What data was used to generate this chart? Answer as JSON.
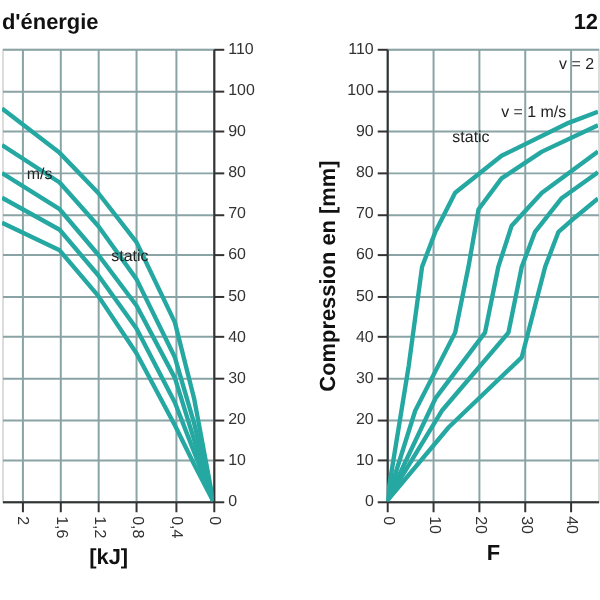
{
  "chart_data": [
    {
      "type": "line",
      "title": "d'énergie",
      "xlabel": "[kJ]",
      "xlim": [
        2.2,
        0
      ],
      "xticks": [
        2,
        {
          "value": 1.6,
          "label": "1,6"
        },
        {
          "value": 1.2,
          "label": "1,2"
        },
        {
          "value": 0.8,
          "label": "0,8"
        },
        {
          "value": 0.4,
          "label": "0,4"
        },
        0
      ],
      "ylim": [
        0,
        110
      ],
      "yticks": [
        0,
        10,
        20,
        30,
        40,
        50,
        60,
        70,
        80,
        90,
        100,
        110
      ],
      "grid": true,
      "legend": false,
      "series": [
        {
          "color": "#25a8a2",
          "x": [
            2.2,
            1.6,
            1.2,
            0.8,
            0.4,
            0.2,
            0
          ],
          "values": [
            95.5,
            84.7,
            75,
            63,
            43.5,
            25,
            0
          ]
        },
        {
          "color": "#25a8a2",
          "x": [
            2.2,
            1.6,
            1.2,
            0.8,
            0.4,
            0.2,
            0
          ],
          "values": [
            86.6,
            77.5,
            67,
            54,
            35,
            19,
            0
          ]
        },
        {
          "color": "#25a8a2",
          "x": [
            2.2,
            1.6,
            1.2,
            0.8,
            0.4,
            0.2,
            0
          ],
          "values": [
            79.8,
            71,
            60,
            47.6,
            30,
            15,
            0
          ]
        },
        {
          "color": "#25a8a2",
          "x": [
            2.2,
            1.6,
            1.2,
            0.8,
            0.4,
            0.2,
            0
          ],
          "values": [
            73.8,
            66,
            55,
            42,
            24,
            12,
            0
          ]
        },
        {
          "color": "#25a8a2",
          "x": [
            2.2,
            1.6,
            1.2,
            0.8,
            0.4,
            0.2,
            0
          ],
          "values": [
            67.7,
            61,
            50,
            36,
            18.5,
            9,
            0
          ]
        }
      ],
      "annotations": [
        {
          "text": "m/s",
          "x": 1.55,
          "y": 75
        },
        {
          "text": "static",
          "x": 0.55,
          "y": 55
        }
      ]
    },
    {
      "type": "line",
      "title": "12",
      "xlabel": "F",
      "ylabel": "Compression en [mm]",
      "xlim": [
        0,
        46
      ],
      "xticks": [
        0,
        10,
        20,
        30,
        40
      ],
      "ylim": [
        0,
        110
      ],
      "yticks": [
        0,
        10,
        20,
        30,
        40,
        50,
        60,
        70,
        80,
        90,
        100,
        110
      ],
      "grid": true,
      "legend": false,
      "series": [
        {
          "color": "#25a8a2",
          "x": [
            0,
            4.8,
            7.7,
            10.6,
            14.9,
            25,
            39.6,
            46
          ],
          "values": [
            0,
            33,
            57,
            65.5,
            75,
            84,
            92,
            94.7
          ]
        },
        {
          "color": "#25a8a2",
          "x": [
            0,
            6.2,
            14.9,
            17.8,
            20,
            25,
            33.8,
            46
          ],
          "values": [
            0,
            22,
            41,
            57,
            71,
            78.5,
            85,
            91.4
          ]
        },
        {
          "color": "#25a8a2",
          "x": [
            0,
            10.6,
            21.4,
            24.3,
            27.2,
            33.8,
            46
          ],
          "values": [
            0,
            25,
            41,
            57,
            67,
            75,
            85
          ]
        },
        {
          "color": "#25a8a2",
          "x": [
            0,
            12,
            26.5,
            29.4,
            32.3,
            38,
            46
          ],
          "values": [
            0,
            22,
            41,
            57,
            65.5,
            73.6,
            80
          ]
        },
        {
          "color": "#25a8a2",
          "x": [
            0,
            13.5,
            29.4,
            34.5,
            37.4,
            41,
            46
          ],
          "values": [
            0,
            18,
            35,
            57,
            65.5,
            69,
            73.6
          ]
        }
      ],
      "annotations": [
        {
          "text": "static",
          "x": 25,
          "y": 84
        },
        {
          "text": "v = 1 m/s",
          "x": 41.7,
          "y": 90
        },
        "v = 2"
      ]
    }
  ]
}
